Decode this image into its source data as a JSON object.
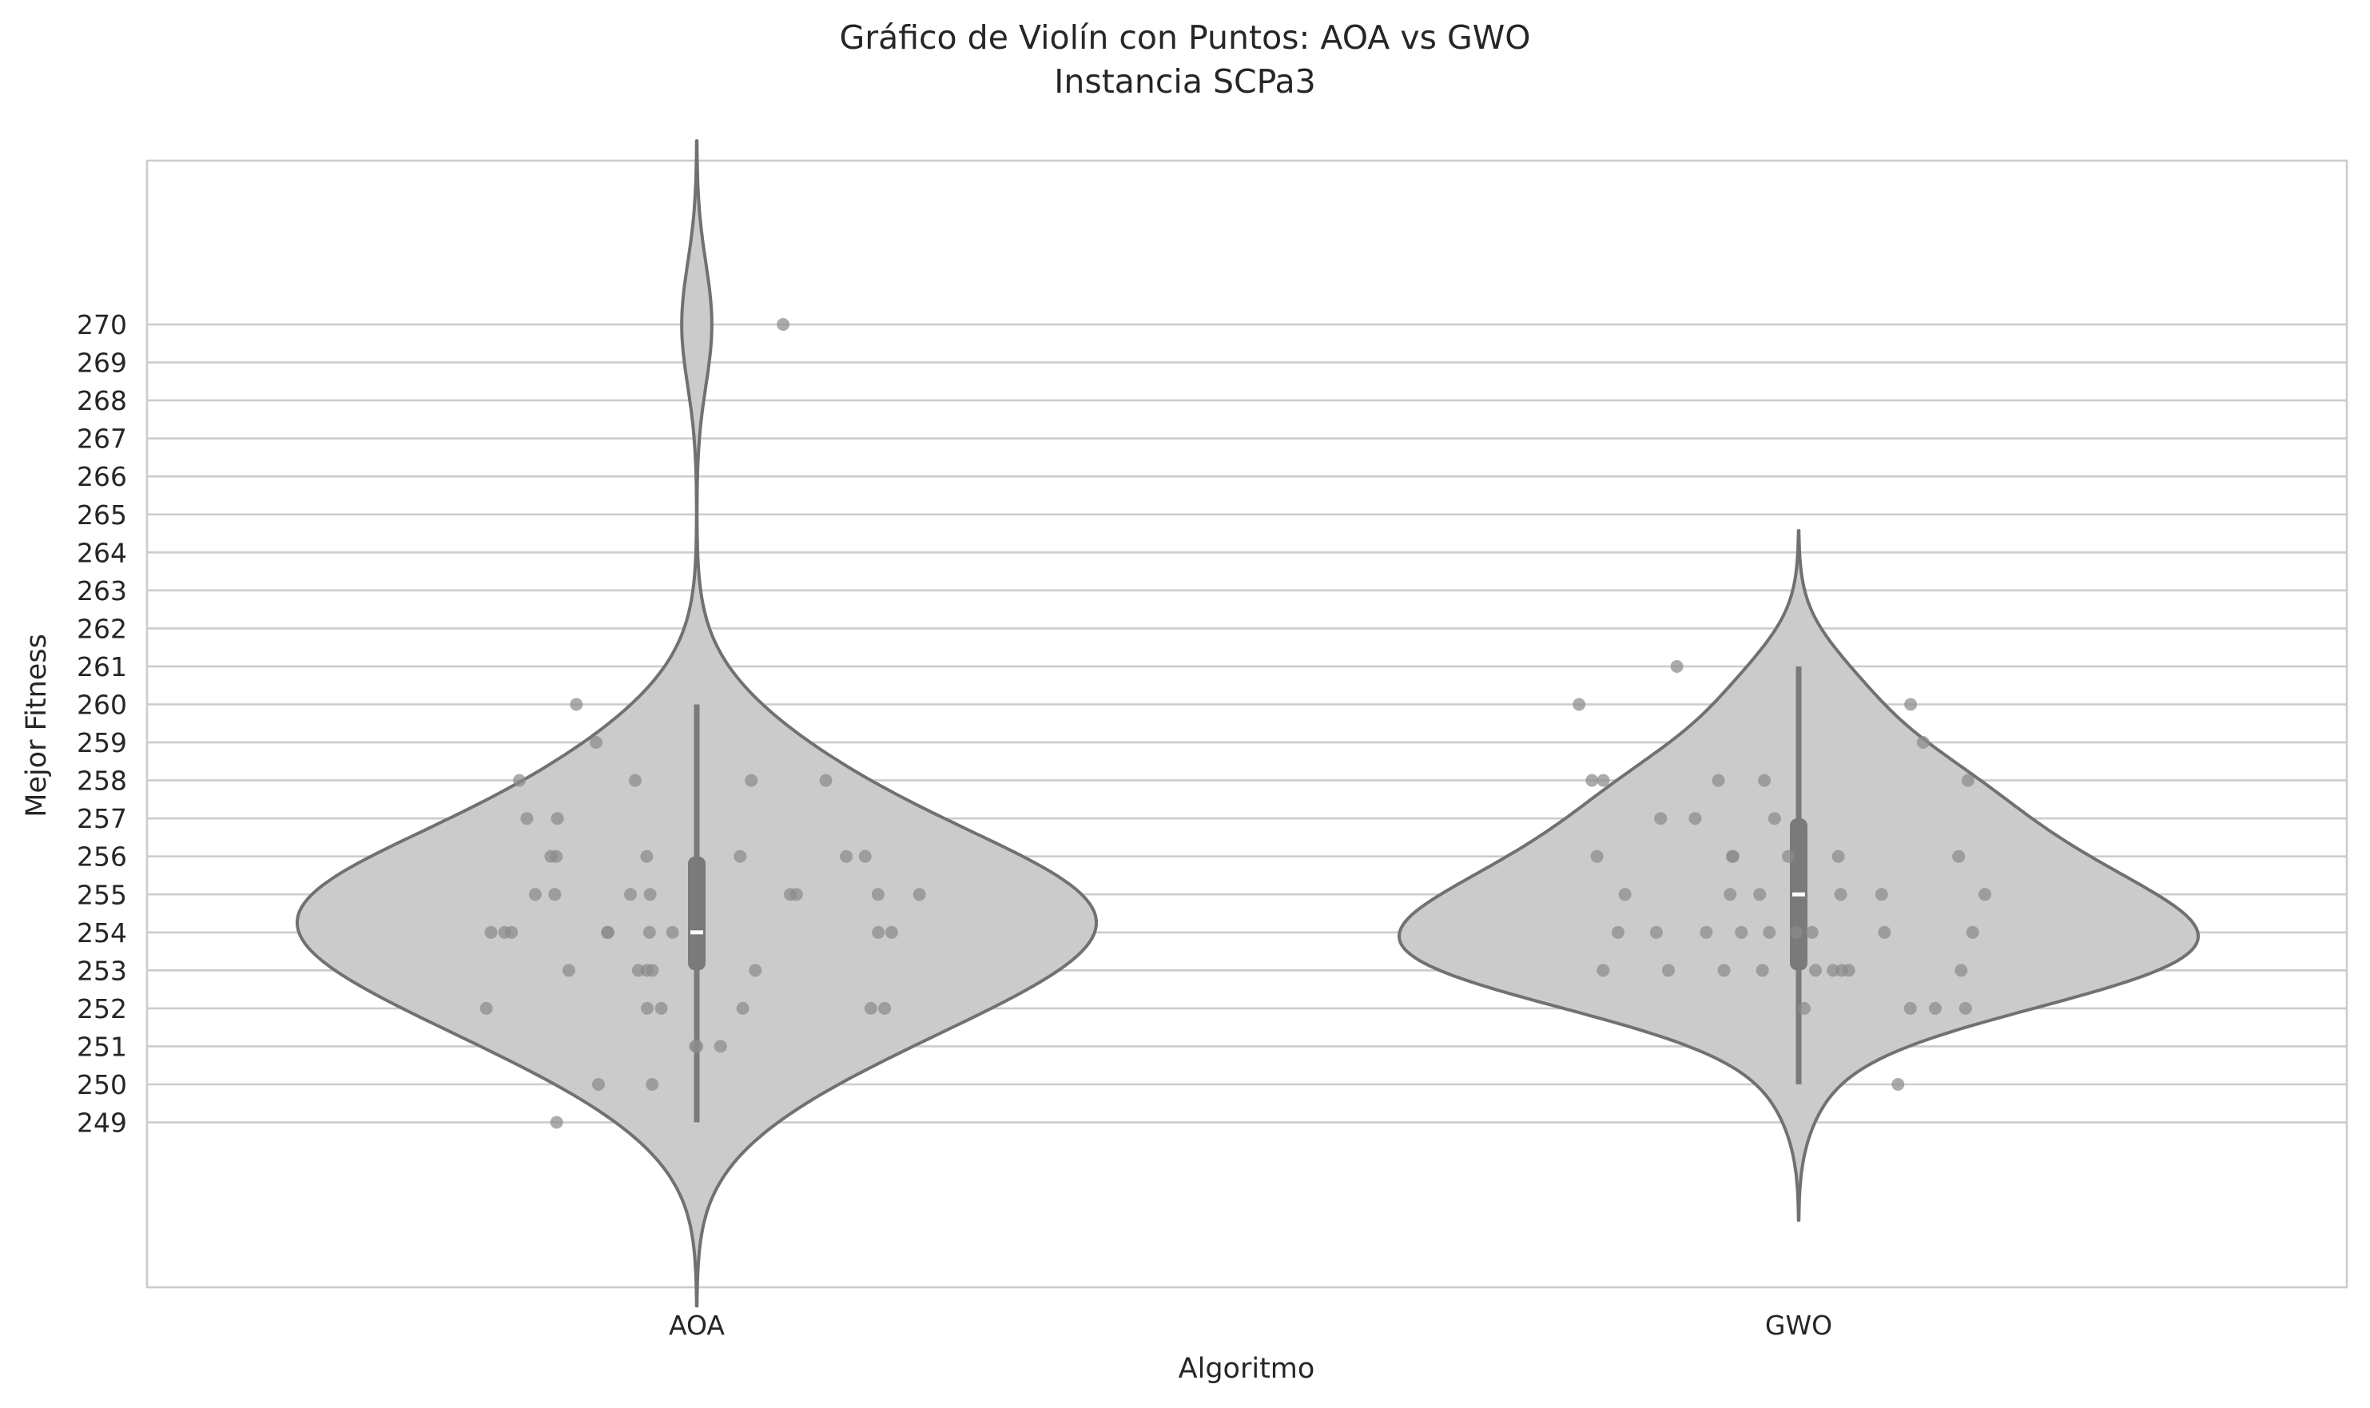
{
  "chart_data": {
    "type": "violin",
    "title": "Gráfico de Violín con Puntos: AOA vs GWO",
    "subtitle": "Instancia SCPa3",
    "xlabel": "Algoritmo",
    "ylabel": "Mejor Fitness",
    "categories": [
      "AOA",
      "GWO"
    ],
    "y_ticks": [
      249,
      250,
      251,
      252,
      253,
      254,
      255,
      256,
      257,
      258,
      259,
      260,
      261,
      262,
      263,
      264,
      265,
      266,
      267,
      268,
      269,
      270
    ],
    "ylim": [
      244.7,
      273.0
    ],
    "grid": "horizontal",
    "legend": "none",
    "colors": {
      "violin_fill": "#cbcbcb",
      "violin_edge": "#717171",
      "box": "#7a7a7a",
      "points": "#8a8a8a",
      "grid": "#cccccc"
    },
    "series": [
      {
        "category": "AOA",
        "min": 249,
        "q1": 253,
        "median": 254,
        "q3": 256,
        "max": 270,
        "whisker_low": 249,
        "whisker_high": 260,
        "points": [
          252,
          252,
          254,
          254,
          254,
          255,
          253,
          251,
          258,
          260,
          257,
          254,
          255,
          255,
          251,
          250,
          258,
          255,
          254,
          254,
          252,
          256,
          257,
          256,
          252,
          256,
          251,
          255,
          255,
          252,
          254,
          256,
          250,
          254,
          255,
          258,
          253,
          256,
          255,
          259,
          256,
          254,
          253,
          258,
          253,
          252,
          253,
          249,
          270
        ]
      },
      {
        "category": "GWO",
        "min": 250,
        "q1": 253,
        "median": 255,
        "q3": 257,
        "max": 261,
        "whisker_low": 250,
        "whisker_high": 261,
        "points": [
          255,
          255,
          253,
          255,
          256,
          254,
          252,
          253,
          252,
          255,
          258,
          254,
          256,
          256,
          254,
          258,
          253,
          261,
          254,
          260,
          256,
          258,
          253,
          253,
          260,
          258,
          255,
          255,
          254,
          253,
          257,
          254,
          258,
          257,
          252,
          254,
          259,
          256,
          253,
          257,
          256,
          252,
          253,
          254,
          253,
          254,
          250
        ]
      }
    ]
  }
}
